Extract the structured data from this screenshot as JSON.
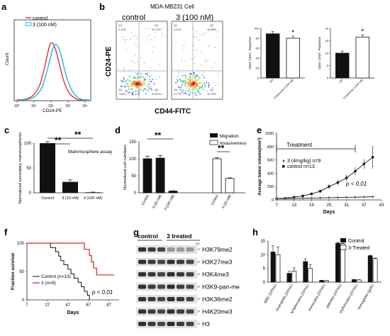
{
  "panels": {
    "a": {
      "letter": "a",
      "xlabel": "CD24-PE",
      "ylabel": "Count",
      "legend": [
        "control",
        "3 (100 nM)"
      ],
      "colors": {
        "control": "#e03030",
        "treated": "#22b6e8"
      },
      "xticks": [
        "10⁰",
        "10¹",
        "10²",
        "10³",
        "10⁴"
      ]
    },
    "b": {
      "letter": "b",
      "title": "MDA-MB231 Cell",
      "plot_left_label": "control",
      "plot_right_label": "3 (100 nM)",
      "xlabel": "CD44-FITC",
      "ylabel": "CD24-PE",
      "quadrants_left": [
        "Q1",
        "0.12%",
        "Q2",
        "10.72%",
        "Q4",
        "7.56%",
        "Q3",
        "81.60%"
      ],
      "quadrants_right": [
        "Q1",
        "0.24%",
        "Q2",
        "16.85%",
        "Q4",
        "6.77%",
        "Q3",
        "76.78%"
      ],
      "bar1": {
        "ylabel": "CD44⁺CD24⁻ Proportion",
        "categories": [
          "Ctrl",
          "Compound 3 (100 nM)"
        ],
        "values": [
          89,
          80
        ],
        "ylim": [
          0,
          100
        ],
        "yticks": [
          "0",
          "20",
          "40",
          "60",
          "80",
          "100"
        ],
        "star": "*"
      },
      "bar2": {
        "ylabel": "CD44⁺CD24⁺ Proportion",
        "categories": [
          "Ctrl",
          "Compound 3 (100 nM)"
        ],
        "values": [
          10,
          16.5
        ],
        "ylim": [
          0,
          20
        ],
        "yticks": [
          "0",
          "5",
          "10",
          "15",
          "20"
        ],
        "star": "*"
      }
    },
    "c": {
      "letter": "c",
      "ylabel": "Normalized secondary mammospheres",
      "title": "Mammosphere assay",
      "categories": [
        "Control",
        "3 (10 nM)",
        "3 (100 nM)"
      ],
      "values": [
        100,
        22,
        1
      ],
      "errors": [
        3,
        4,
        0.5
      ],
      "ylim": [
        0,
        100
      ],
      "yticks": [
        "0",
        "50",
        "100"
      ],
      "sig": [
        "**",
        "**"
      ]
    },
    "d": {
      "letter": "d",
      "ylabel": "Normalized cell numbers",
      "legend": [
        "Migration",
        "Invasiveness"
      ],
      "categories": [
        "Control",
        "3 (20 nM)",
        "3 (100 nM)",
        "Control",
        "3 (20 nM)"
      ],
      "values": [
        100,
        102,
        5,
        100,
        42
      ],
      "errors": [
        8,
        8,
        1,
        3,
        2
      ],
      "ylim": [
        0,
        150
      ],
      "yticks": [
        "0",
        "50",
        "100",
        "150"
      ],
      "sig": [
        "**",
        "**"
      ]
    },
    "e": {
      "letter": "e",
      "ylabel": "Average tumor volume(mm³)",
      "xlabel": "Days",
      "bracket": "Treatment",
      "legend_treated": "3 (4mg/kg) n=9",
      "legend_control": "control n=13",
      "pval": "p < 0.01",
      "xticks": [
        "7",
        "13",
        "19",
        "25",
        "31",
        "37",
        "43"
      ],
      "yticks": [
        "0",
        "200",
        "400",
        "600",
        "800",
        "1000"
      ],
      "xlim": [
        7,
        43
      ],
      "ylim": [
        0,
        1000
      ],
      "series": [
        {
          "x": [
            7,
            10,
            13,
            16,
            19,
            22,
            25,
            28,
            31,
            34,
            37,
            40
          ],
          "y": [
            20,
            25,
            40,
            60,
            90,
            130,
            200,
            260,
            330,
            430,
            540,
            640
          ],
          "err": [
            5,
            8,
            10,
            15,
            20,
            25,
            35,
            40,
            50,
            60,
            70,
            170
          ],
          "style": "control"
        },
        {
          "x": [
            7,
            10,
            13,
            16,
            19,
            22,
            25,
            28,
            31,
            34,
            37,
            40
          ],
          "y": [
            18,
            20,
            22,
            25,
            28,
            30,
            33,
            35,
            38,
            40,
            44,
            48
          ],
          "err": [
            3,
            3,
            3,
            4,
            4,
            4,
            5,
            5,
            5,
            6,
            6,
            6
          ],
          "style": "treated"
        }
      ]
    },
    "f": {
      "letter": "f",
      "ylabel": "Fraction survival",
      "xlabel": "Days",
      "pval": "p < 0.01",
      "legend": [
        "Control (n=13)",
        "3 (n=9)"
      ],
      "xticks": [
        "7",
        "27",
        "47",
        "67",
        "87"
      ],
      "yticks": [
        "0",
        "50",
        "100"
      ],
      "xlim": [
        7,
        97
      ],
      "ylim": [
        0,
        100
      ],
      "control_steps": [
        [
          7,
          100
        ],
        [
          30,
          100
        ],
        [
          30,
          92
        ],
        [
          35,
          92
        ],
        [
          35,
          85
        ],
        [
          38,
          85
        ],
        [
          38,
          77
        ],
        [
          40,
          77
        ],
        [
          40,
          69
        ],
        [
          43,
          69
        ],
        [
          43,
          62
        ],
        [
          47,
          62
        ],
        [
          47,
          54
        ],
        [
          50,
          54
        ],
        [
          50,
          46
        ],
        [
          53,
          46
        ],
        [
          53,
          38
        ],
        [
          57,
          38
        ],
        [
          57,
          31
        ],
        [
          60,
          31
        ],
        [
          60,
          23
        ],
        [
          63,
          23
        ],
        [
          63,
          15
        ],
        [
          66,
          15
        ],
        [
          66,
          8
        ],
        [
          68,
          8
        ],
        [
          68,
          0
        ]
      ],
      "treated_steps": [
        [
          7,
          100
        ],
        [
          63,
          100
        ],
        [
          63,
          89
        ],
        [
          68,
          89
        ],
        [
          68,
          78
        ],
        [
          70,
          78
        ],
        [
          70,
          67
        ],
        [
          72,
          67
        ],
        [
          72,
          56
        ],
        [
          75,
          56
        ],
        [
          75,
          44
        ],
        [
          92,
          44
        ]
      ]
    },
    "g": {
      "letter": "g",
      "group_labels": [
        "control",
        "3 treated"
      ],
      "kd": "KD",
      "rows": [
        "H3K79me2",
        "H3K27me3",
        "H3K4me3",
        "H3K9-pan-me",
        "H3K36me2",
        "H4K20me3",
        "H3"
      ],
      "marker": "17"
    },
    "h": {
      "letter": "h",
      "legend": [
        "Control",
        "3-Treated"
      ],
      "categories": [
        "WBC (10³/uL)",
        "neutrophils (10³/uL)",
        "lymphocytes (10³/uL)",
        "monocytes (10³/uL)",
        "platelets (10⁵/uL)",
        "erythrocytes (10⁶/uL)",
        "hemoglobin (g/dL)"
      ],
      "control": [
        11,
        3.2,
        7.5,
        0.6,
        14.2,
        0.9,
        9.6
      ],
      "treated": [
        10,
        4,
        5,
        0.5,
        14,
        0.8,
        8.6
      ],
      "control_err": [
        2.3,
        0.8,
        1,
        0.1,
        0.3,
        0.1,
        0.2
      ],
      "treated_err": [
        2.8,
        1.2,
        1.3,
        0.1,
        0.2,
        0.1,
        0.2
      ],
      "ylim": [
        0,
        15
      ],
      "yticks": [
        "0",
        "5",
        "10",
        "15"
      ]
    }
  }
}
